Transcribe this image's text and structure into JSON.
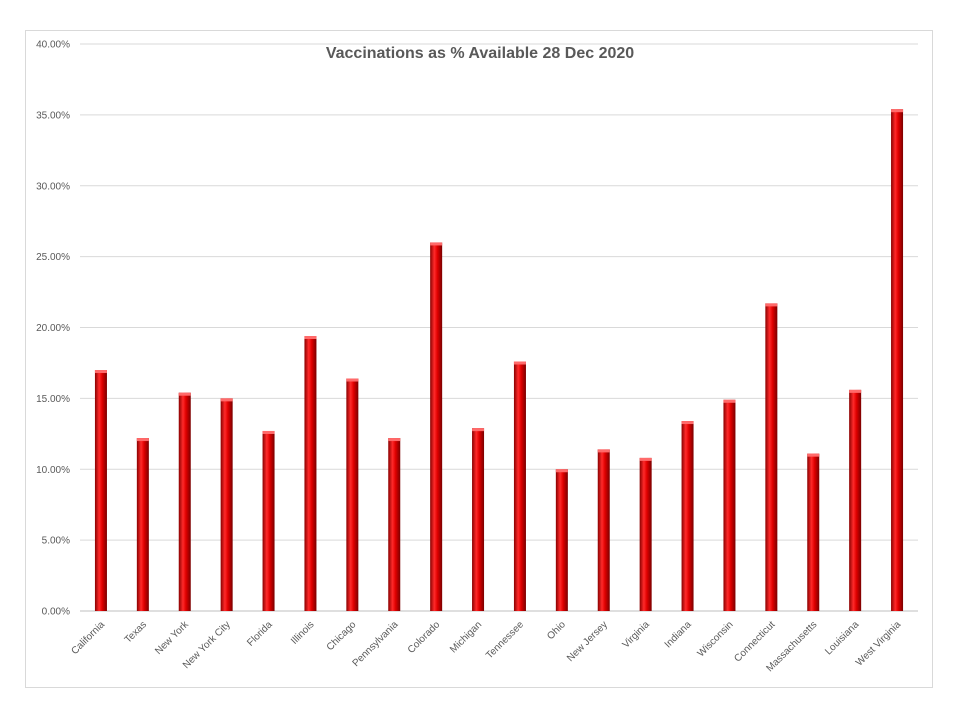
{
  "chart_data": {
    "type": "bar",
    "title": "Vaccinations as % Available 28 Dec 2020",
    "categories": [
      "California",
      "Texas",
      "New York",
      "New York City",
      "Florida",
      "Illinois",
      "Chicago",
      "Pennsylvania",
      "Colorado",
      "Michigan",
      "Tennessee",
      "Ohio",
      "New Jersey",
      "Virginia",
      "Indiana",
      "Wisconsin",
      "Connecticut",
      "Massachusetts",
      "Louisiana",
      "West Virginia"
    ],
    "values": [
      17.0,
      12.2,
      15.4,
      15.0,
      12.7,
      19.4,
      16.4,
      12.2,
      26.0,
      12.9,
      17.6,
      10.0,
      11.4,
      10.8,
      13.4,
      14.9,
      21.7,
      11.1,
      15.6,
      35.4
    ],
    "ylim": [
      0,
      40
    ],
    "yticks": [
      "0.00%",
      "5.00%",
      "10.00%",
      "15.00%",
      "20.00%",
      "25.00%",
      "30.00%",
      "35.00%",
      "40.00%"
    ],
    "grid": true,
    "legend": "none",
    "bar_color": "#e00000"
  }
}
